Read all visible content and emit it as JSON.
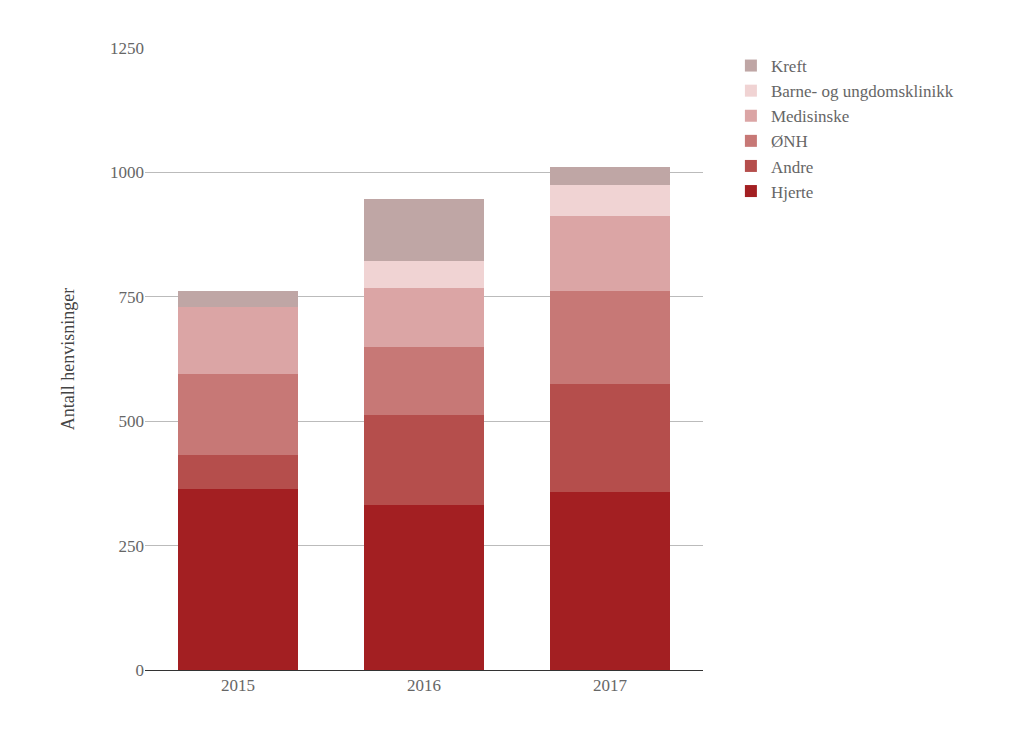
{
  "chart_data": {
    "type": "bar",
    "stacked": true,
    "y_label": "Antall henvisninger",
    "categories": [
      "2015",
      "2016",
      "2017"
    ],
    "series": [
      {
        "name": "Hjerte",
        "color": "#a31f22",
        "values": [
          363,
          332,
          357
        ]
      },
      {
        "name": "Andre",
        "color": "#b54e4c",
        "values": [
          69,
          180,
          217
        ]
      },
      {
        "name": "ØNH",
        "color": "#c77876",
        "values": [
          162,
          138,
          188
        ]
      },
      {
        "name": "Medisinske",
        "color": "#dba5a5",
        "values": [
          136,
          118,
          150
        ]
      },
      {
        "name": "Barne- og ungdomsklinikk",
        "color": "#f0d3d3",
        "values": [
          0,
          54,
          63
        ]
      },
      {
        "name": "Kreft",
        "color": "#bfa6a5",
        "values": [
          32,
          125,
          35
        ]
      }
    ],
    "ylim": [
      0,
      1250
    ],
    "yticks": [
      0,
      250,
      500,
      750,
      1000,
      1250
    ],
    "grid": true,
    "legend": "top right"
  }
}
